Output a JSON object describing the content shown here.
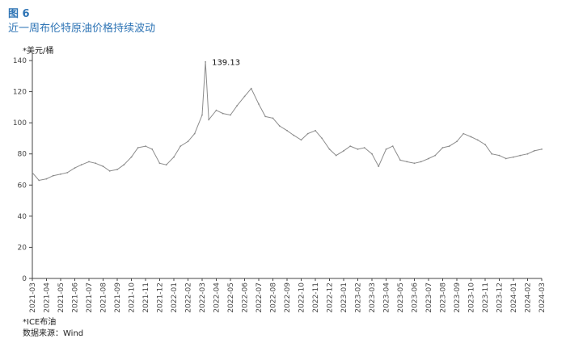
{
  "figure_label": "图 6",
  "title": "近一周布伦特原油价格持续波动",
  "unit_label": "*美元/桶",
  "note": "*ICE布油",
  "source": "数据来源：Wind",
  "colors": {
    "title": "#2e74b5",
    "line": "#8c8c8c",
    "axis": "#444444"
  },
  "chart_data": {
    "type": "line",
    "title": "近一周布伦特原油价格持续波动",
    "xlabel": "",
    "ylabel": "*美元/桶",
    "ylim": [
      0,
      140
    ],
    "yticks": [
      0,
      20,
      40,
      60,
      80,
      100,
      120,
      140
    ],
    "grid": false,
    "xticks": [
      "2021-03",
      "2021-04",
      "2021-05",
      "2021-06",
      "2021-07",
      "2021-08",
      "2021-09",
      "2021-10",
      "2021-11",
      "2021-12",
      "2022-01",
      "2022-02",
      "2022-03",
      "2022-04",
      "2022-05",
      "2022-06",
      "2022-07",
      "2022-08",
      "2022-09",
      "2022-10",
      "2022-11",
      "2022-12",
      "2023-01",
      "2023-02",
      "2023-03",
      "2023-04",
      "2023-05",
      "2023-06",
      "2023-07",
      "2023-08",
      "2023-09",
      "2023-10",
      "2023-11",
      "2023-12",
      "2024-01",
      "2024-02",
      "2024-03"
    ],
    "series": [
      {
        "x": [
          "2021-03-01",
          "2021-03-15",
          "2021-04-01",
          "2021-04-15",
          "2021-05-01",
          "2021-05-15",
          "2021-06-01",
          "2021-06-15",
          "2021-07-01",
          "2021-07-15",
          "2021-08-01",
          "2021-08-15",
          "2021-09-01",
          "2021-09-15",
          "2021-10-01",
          "2021-10-15",
          "2021-11-01",
          "2021-11-15",
          "2021-12-01",
          "2021-12-15",
          "2022-01-01",
          "2022-01-15",
          "2022-02-01",
          "2022-02-15",
          "2022-03-01",
          "2022-03-08",
          "2022-03-15",
          "2022-04-01",
          "2022-04-15",
          "2022-05-01",
          "2022-05-15",
          "2022-06-01",
          "2022-06-15",
          "2022-07-01",
          "2022-07-15",
          "2022-08-01",
          "2022-08-15",
          "2022-09-01",
          "2022-09-15",
          "2022-10-01",
          "2022-10-15",
          "2022-11-01",
          "2022-11-15",
          "2022-12-01",
          "2022-12-15",
          "2023-01-01",
          "2023-01-15",
          "2023-02-01",
          "2023-02-15",
          "2023-03-01",
          "2023-03-15",
          "2023-04-01",
          "2023-04-15",
          "2023-05-01",
          "2023-05-15",
          "2023-06-01",
          "2023-06-15",
          "2023-07-01",
          "2023-07-15",
          "2023-08-01",
          "2023-08-15",
          "2023-09-01",
          "2023-09-15",
          "2023-10-01",
          "2023-10-15",
          "2023-11-01",
          "2023-11-15",
          "2023-12-01",
          "2023-12-15",
          "2024-01-01",
          "2024-01-15",
          "2024-02-01",
          "2024-02-15",
          "2024-03-01"
        ],
        "values": [
          68,
          63,
          64,
          66,
          67,
          68,
          71,
          73,
          75,
          74,
          72,
          69,
          70,
          73,
          78,
          84,
          85,
          83,
          74,
          73,
          78,
          85,
          88,
          93,
          105,
          139.13,
          102,
          108,
          106,
          105,
          111,
          117,
          122,
          112,
          104,
          103,
          98,
          95,
          92,
          89,
          93,
          95,
          90,
          83,
          79,
          82,
          85,
          83,
          84,
          80,
          72,
          83,
          85,
          76,
          75,
          74,
          75,
          77,
          79,
          84,
          85,
          88,
          93,
          91,
          89,
          86,
          80,
          79,
          77,
          78,
          79,
          80,
          82,
          83
        ]
      }
    ],
    "annotations": [
      {
        "x": "2022-03-08",
        "y": 139.13,
        "text": "139.13"
      }
    ]
  }
}
